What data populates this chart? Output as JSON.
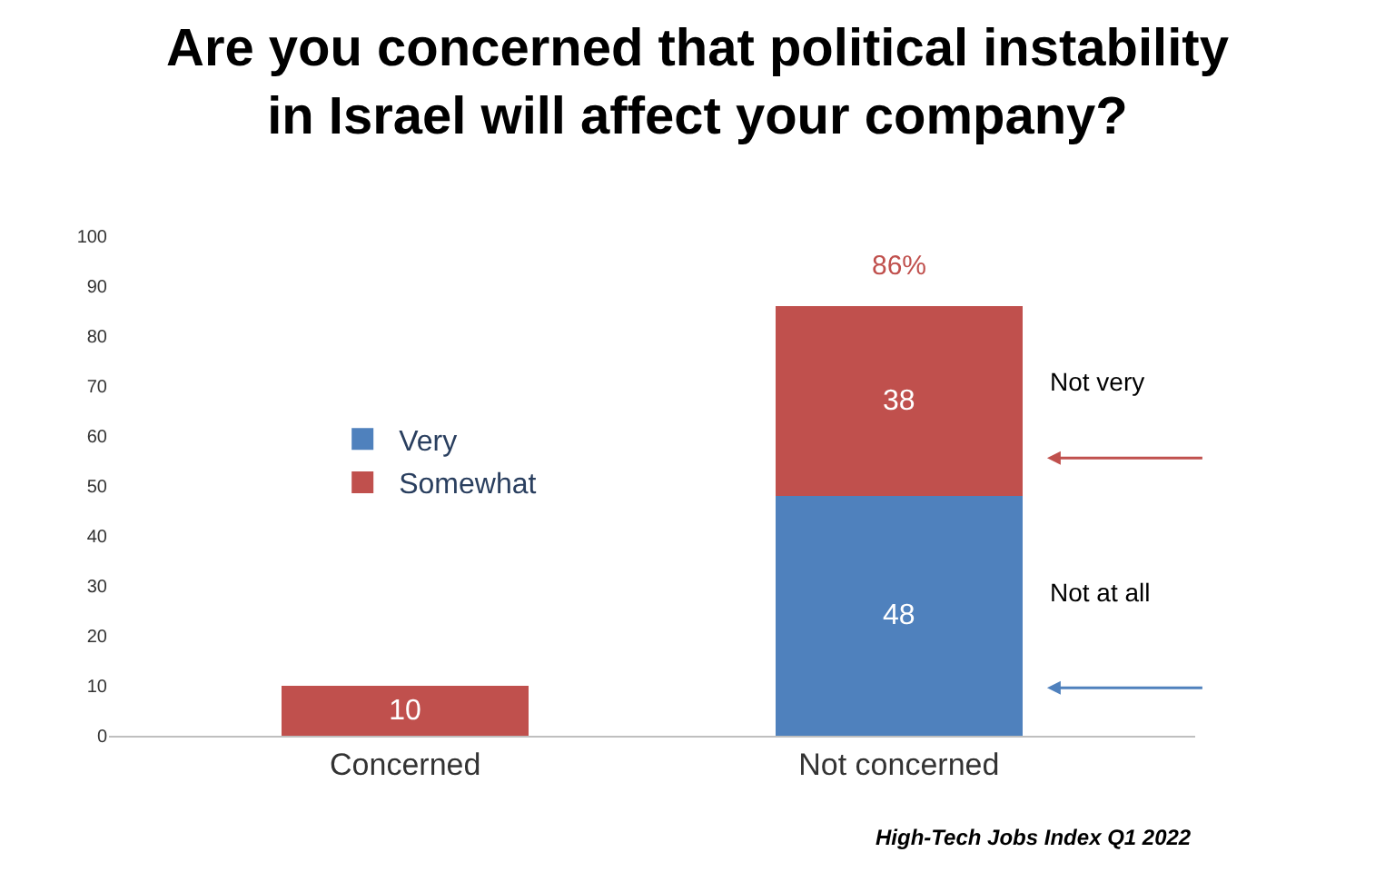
{
  "chart_data": {
    "type": "bar",
    "title": "Are you concerned that political instability\nin Israel will affect your company?",
    "categories": [
      "Concerned",
      "Not concerned"
    ],
    "series": [
      {
        "name": "Very",
        "color": "#4f81bd",
        "values": [
          null,
          48
        ]
      },
      {
        "name": "Somewhat",
        "color": "#c0504d",
        "values": [
          10,
          38
        ]
      }
    ],
    "stacked": true,
    "data_labels": true,
    "totals": [
      null,
      "86%"
    ],
    "ylim": [
      0,
      100
    ],
    "yticks": [
      0,
      10,
      20,
      30,
      40,
      50,
      60,
      70,
      80,
      90,
      100
    ],
    "legend": "left",
    "annotations": [
      "Not very",
      "Not at all",
      "High-Tech Jobs Index Q1 2022"
    ]
  }
}
